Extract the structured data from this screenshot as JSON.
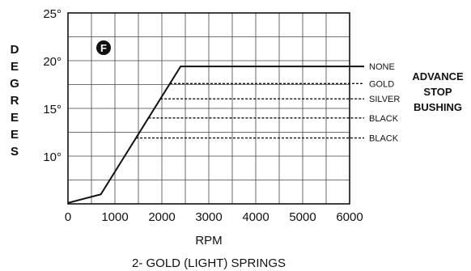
{
  "chart_data": {
    "type": "line",
    "badge": "F",
    "xlabel": "RPM",
    "ylabel": "DEGREES",
    "caption": "2- GOLD (LIGHT) SPRINGS",
    "xlim": [
      0,
      6000
    ],
    "ylim": [
      5,
      25
    ],
    "x_ticks": [
      "0",
      "1000",
      "2000",
      "3000",
      "4000",
      "5000",
      "6000"
    ],
    "y_ticks": [
      {
        "value": 10,
        "label": "10°"
      },
      {
        "value": 15,
        "label": "15°"
      },
      {
        "value": 20,
        "label": "20°"
      },
      {
        "value": 25,
        "label": "25°"
      }
    ],
    "grid": true,
    "series": [
      {
        "x": [
          0,
          700,
          2400,
          6000
        ],
        "y": [
          5.1,
          6.0,
          19.4,
          19.4
        ]
      }
    ],
    "stop_lines": [
      {
        "name": "NONE",
        "y": 19.4
      },
      {
        "name": "GOLD",
        "y": 17.6
      },
      {
        "name": "SILVER",
        "y": 16.0
      },
      {
        "name": "BLACK",
        "y": 14.0
      },
      {
        "name": "BLACK",
        "y": 11.9
      }
    ],
    "legend_group_label": [
      "ADVANCE",
      "STOP",
      "BUSHING"
    ]
  }
}
